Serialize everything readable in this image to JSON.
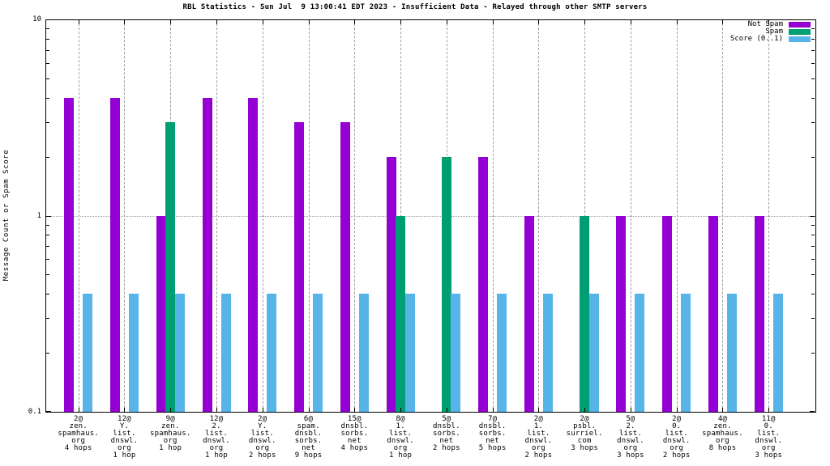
{
  "chart_data": {
    "type": "bar",
    "title": "RBL Statistics - Sun Jul  9 13:00:41 EDT 2023 - Insufficient Data - Relayed through other SMTP servers",
    "ylabel": "Message Count or Spam Score",
    "xlabel": "",
    "yscale": "log",
    "ylim": [
      0.1,
      10
    ],
    "ytick_labels": [
      "0.1",
      "1",
      "10"
    ],
    "ytick_values": [
      0.1,
      1,
      10
    ],
    "grid": {
      "vertical_dashed_per_category": true,
      "horizontal_dotted_at": 1
    },
    "legend": {
      "position": "top-right",
      "entries": [
        {
          "label": "Not Spam",
          "color": "#9400D3"
        },
        {
          "label": "Spam",
          "color": "#009E73"
        },
        {
          "label": "Score (0..1)",
          "color": "#56B4E9"
        }
      ]
    },
    "categories": [
      [
        "2@",
        "zen.",
        "spamhaus.",
        "org",
        "4 hops"
      ],
      [
        "12@",
        "Y.",
        "list.",
        "dnswl.",
        "org",
        "1 hop"
      ],
      [
        "9@",
        "zen.",
        "spamhaus.",
        "org",
        "1 hop"
      ],
      [
        "12@",
        "2.",
        "list.",
        "dnswl.",
        "org",
        "1 hop"
      ],
      [
        "2@",
        "Y.",
        "list.",
        "dnswl.",
        "org",
        "2 hops"
      ],
      [
        "6@",
        "spam.",
        "dnsbl.",
        "sorbs.",
        "net",
        "9 hops"
      ],
      [
        "15@",
        "dnsbl.",
        "sorbs.",
        "net",
        "4 hops"
      ],
      [
        "8@",
        "1.",
        "list.",
        "dnswl.",
        "org",
        "1 hop"
      ],
      [
        "5@",
        "dnsbl.",
        "sorbs.",
        "net",
        "2 hops"
      ],
      [
        "7@",
        "dnsbl.",
        "sorbs.",
        "net",
        "5 hops"
      ],
      [
        "2@",
        "1.",
        "list.",
        "dnswl.",
        "org",
        "2 hops"
      ],
      [
        "2@",
        "psbl.",
        "surriel.",
        "com",
        "3 hops"
      ],
      [
        "5@",
        "2.",
        "list.",
        "dnswl.",
        "org",
        "3 hops"
      ],
      [
        "2@",
        "0.",
        "list.",
        "dnswl.",
        "org",
        "2 hops"
      ],
      [
        "4@",
        "zen.",
        "spamhaus.",
        "org",
        "8 hops"
      ],
      [
        "11@",
        "0.",
        "list.",
        "dnswl.",
        "org",
        "3 hops"
      ]
    ],
    "series": [
      {
        "name": "Not Spam",
        "color": "#9400D3",
        "values": [
          4,
          4,
          1,
          4,
          4,
          3,
          3,
          2,
          0,
          2,
          1,
          0,
          1,
          1,
          1,
          1
        ]
      },
      {
        "name": "Spam",
        "color": "#009E73",
        "values": [
          0,
          0,
          3,
          0,
          0,
          0,
          0,
          1,
          2,
          0,
          0,
          1,
          0,
          0,
          0,
          0
        ]
      },
      {
        "name": "Score (0..1)",
        "color": "#56B4E9",
        "values": [
          0.4,
          0.4,
          0.4,
          0.4,
          0.4,
          0.4,
          0.4,
          0.4,
          0.4,
          0.4,
          0.4,
          0.4,
          0.4,
          0.4,
          0.4,
          0.4
        ]
      }
    ]
  }
}
